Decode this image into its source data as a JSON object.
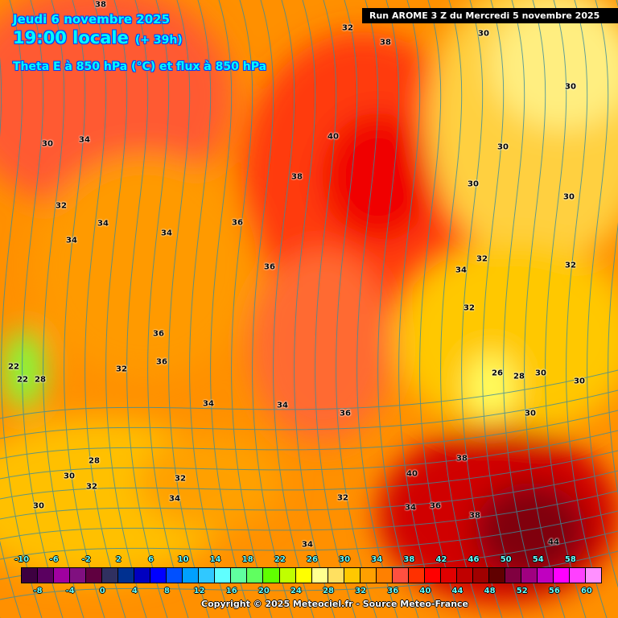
{
  "header": {
    "date": "Jeudi 6 novembre 2025",
    "time": "19:00 locale",
    "offset": "(+ 39h)",
    "parameter": "Theta E à 850 hPa (°C) et flux à 850 hPa",
    "run": "Run AROME 3 Z du Mercredi 5 novembre 2025"
  },
  "map": {
    "contour_labels": [
      "38",
      "32",
      "38",
      "30",
      "30",
      "40",
      "30",
      "30",
      "34",
      "38",
      "30",
      "30",
      "32",
      "34",
      "34",
      "36",
      "34",
      "36",
      "34",
      "32",
      "32",
      "32",
      "36",
      "36",
      "32",
      "26",
      "28",
      "30",
      "30",
      "22",
      "22",
      "28",
      "34",
      "34",
      "36",
      "30",
      "28",
      "38",
      "30",
      "32",
      "32",
      "40",
      "34",
      "32",
      "30",
      "34",
      "36",
      "38",
      "34",
      "44"
    ],
    "streamline_color": "#3a8c9c"
  },
  "colorbar": {
    "top_labels": [
      "-10",
      "-6",
      "-2",
      "2",
      "6",
      "10",
      "14",
      "18",
      "22",
      "26",
      "30",
      "34",
      "38",
      "42",
      "46",
      "50",
      "54",
      "58"
    ],
    "bottom_labels": [
      "-8",
      "-4",
      "0",
      "4",
      "8",
      "12",
      "16",
      "20",
      "24",
      "28",
      "32",
      "36",
      "40",
      "44",
      "48",
      "52",
      "56",
      "60"
    ],
    "colors": [
      "#3d0040",
      "#5a0060",
      "#a000a0",
      "#801080",
      "#600040",
      "#303060",
      "#003090",
      "#0000c0",
      "#0000ff",
      "#0050ff",
      "#00a0ff",
      "#30c8ff",
      "#60ffff",
      "#60ffa0",
      "#60ff60",
      "#60ff00",
      "#c0ff00",
      "#ffff00",
      "#ffff90",
      "#ffe060",
      "#ffc800",
      "#ffa000",
      "#ff8000",
      "#ff5040",
      "#ff3000",
      "#ff0000",
      "#e00000",
      "#c00000",
      "#a00000",
      "#600000",
      "#800040",
      "#a00080",
      "#c000c0",
      "#ff00ff",
      "#ff40ff",
      "#ff90ff"
    ]
  },
  "footer": {
    "copyright": "Copyright © 2025 Meteociel.fr - Source Meteo-France"
  }
}
